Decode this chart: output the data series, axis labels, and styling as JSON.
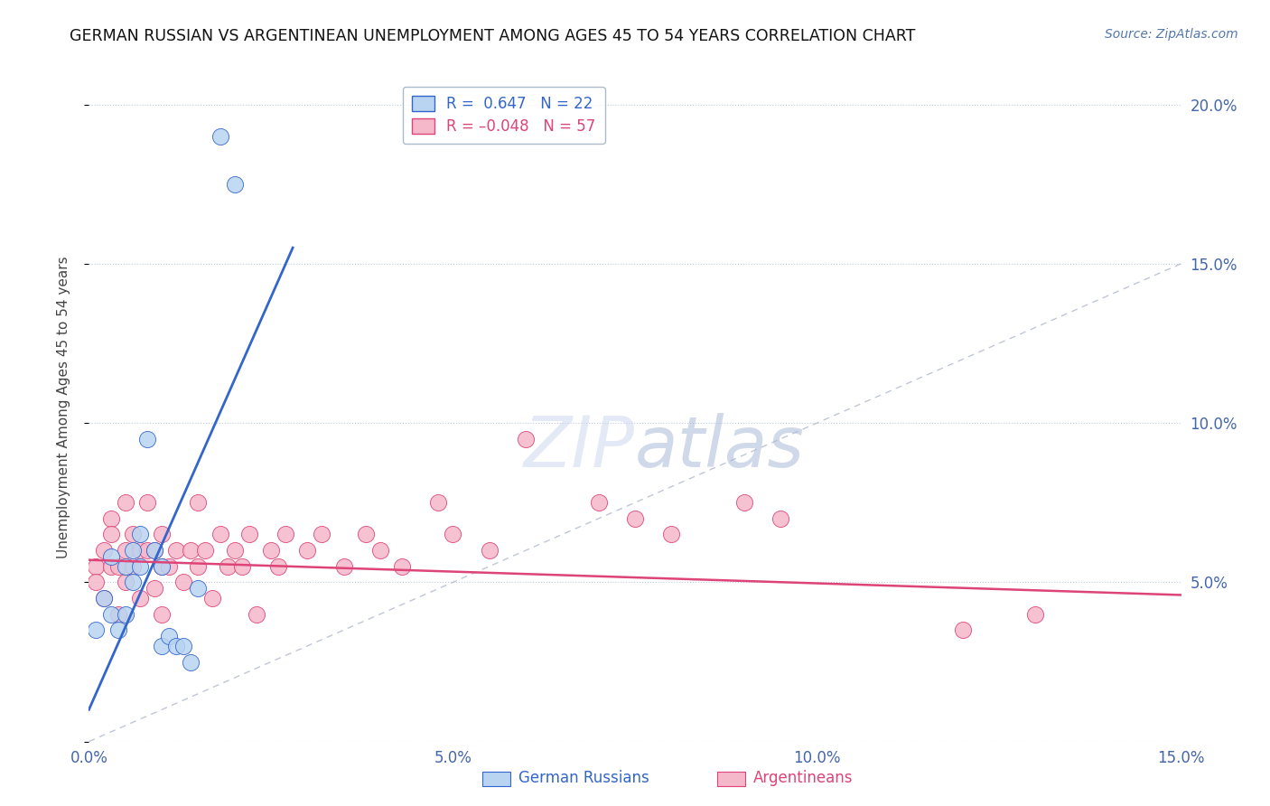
{
  "title": "GERMAN RUSSIAN VS ARGENTINEAN UNEMPLOYMENT AMONG AGES 45 TO 54 YEARS CORRELATION CHART",
  "source": "Source: ZipAtlas.com",
  "ylabel": "Unemployment Among Ages 45 to 54 years",
  "xlim": [
    0.0,
    0.15
  ],
  "ylim": [
    0.0,
    0.21
  ],
  "xticks": [
    0.0,
    0.05,
    0.1,
    0.15
  ],
  "xticklabels": [
    "0.0%",
    "5.0%",
    "10.0%",
    "15.0%"
  ],
  "yticks": [
    0.0,
    0.05,
    0.1,
    0.15,
    0.2
  ],
  "yticklabels": [
    "",
    "5.0%",
    "10.0%",
    "15.0%",
    "20.0%"
  ],
  "legend_r1": "R =  0.647",
  "legend_n1": "N = 22",
  "legend_r2": "R = -0.048",
  "legend_n2": "N = 57",
  "blue_color": "#b8d4f0",
  "pink_color": "#f5b8cb",
  "blue_line_color": "#3366cc",
  "pink_line_color": "#dd4477",
  "ref_line_color": "#b0b8cc",
  "watermark_zip": "ZIP",
  "watermark_atlas": "atlas",
  "german_russian_x": [
    0.001,
    0.002,
    0.003,
    0.003,
    0.004,
    0.005,
    0.005,
    0.006,
    0.006,
    0.007,
    0.007,
    0.008,
    0.009,
    0.01,
    0.01,
    0.011,
    0.012,
    0.013,
    0.014,
    0.015,
    0.018,
    0.02
  ],
  "german_russian_y": [
    0.035,
    0.045,
    0.04,
    0.058,
    0.035,
    0.04,
    0.055,
    0.05,
    0.06,
    0.055,
    0.065,
    0.095,
    0.06,
    0.03,
    0.055,
    0.033,
    0.03,
    0.03,
    0.025,
    0.048,
    0.19,
    0.175
  ],
  "argentinean_x": [
    0.001,
    0.001,
    0.002,
    0.002,
    0.003,
    0.003,
    0.003,
    0.004,
    0.004,
    0.005,
    0.005,
    0.005,
    0.006,
    0.006,
    0.007,
    0.007,
    0.008,
    0.008,
    0.009,
    0.009,
    0.01,
    0.01,
    0.01,
    0.011,
    0.012,
    0.013,
    0.014,
    0.015,
    0.015,
    0.016,
    0.017,
    0.018,
    0.019,
    0.02,
    0.021,
    0.022,
    0.023,
    0.025,
    0.026,
    0.027,
    0.03,
    0.032,
    0.035,
    0.038,
    0.04,
    0.043,
    0.048,
    0.05,
    0.055,
    0.06,
    0.07,
    0.075,
    0.08,
    0.09,
    0.095,
    0.12,
    0.13
  ],
  "argentinean_y": [
    0.055,
    0.05,
    0.06,
    0.045,
    0.055,
    0.07,
    0.065,
    0.055,
    0.04,
    0.06,
    0.075,
    0.05,
    0.055,
    0.065,
    0.06,
    0.045,
    0.06,
    0.075,
    0.06,
    0.048,
    0.055,
    0.065,
    0.04,
    0.055,
    0.06,
    0.05,
    0.06,
    0.055,
    0.075,
    0.06,
    0.045,
    0.065,
    0.055,
    0.06,
    0.055,
    0.065,
    0.04,
    0.06,
    0.055,
    0.065,
    0.06,
    0.065,
    0.055,
    0.065,
    0.06,
    0.055,
    0.075,
    0.065,
    0.06,
    0.095,
    0.075,
    0.07,
    0.065,
    0.075,
    0.07,
    0.035,
    0.04
  ],
  "blue_trend_x0": 0.0,
  "blue_trend_y0": 0.01,
  "blue_trend_x1": 0.028,
  "blue_trend_y1": 0.155,
  "pink_trend_x0": 0.0,
  "pink_trend_y0": 0.057,
  "pink_trend_x1": 0.15,
  "pink_trend_y1": 0.046
}
